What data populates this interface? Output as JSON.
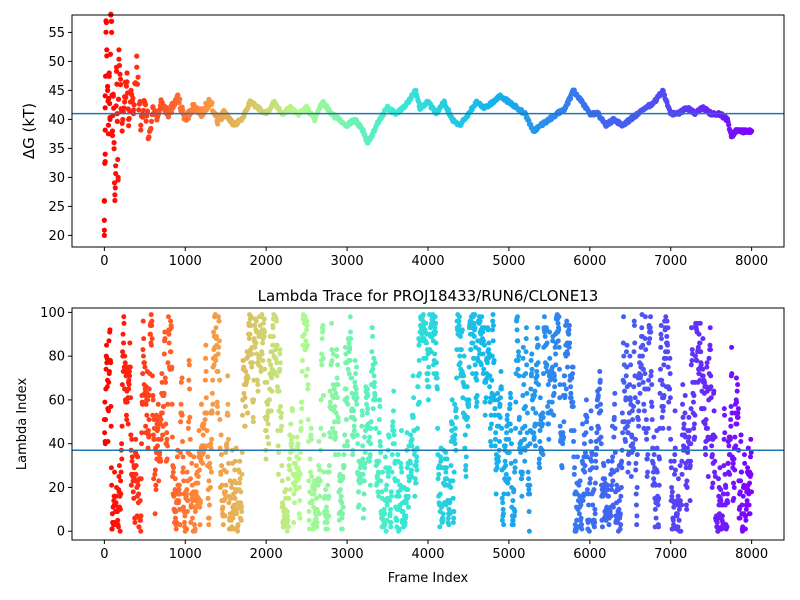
{
  "chart_data": [
    {
      "type": "scatter",
      "title": "",
      "xlabel": "",
      "ylabel": "ΔG (kT)",
      "xlim": [
        -400,
        8400
      ],
      "ylim": [
        18,
        58
      ],
      "x_ticks": [
        0,
        1000,
        2000,
        3000,
        4000,
        5000,
        6000,
        7000,
        8000
      ],
      "y_ticks": [
        20,
        25,
        30,
        35,
        40,
        45,
        50,
        55
      ],
      "hline": 41.0,
      "hline_color": "#1f77b4",
      "colormap": "rainbow (red at start → violet at end)",
      "series": [
        {
          "points": [
            [
              0,
              20
            ],
            [
              0,
              26
            ],
            [
              10,
              34
            ],
            [
              10,
              42
            ],
            [
              20,
              57
            ],
            [
              30,
              52
            ],
            [
              40,
              45
            ],
            [
              50,
              39
            ],
            [
              60,
              48
            ],
            [
              70,
              40
            ],
            [
              80,
              58
            ],
            [
              90,
              55
            ],
            [
              100,
              38
            ],
            [
              110,
              44
            ],
            [
              120,
              36
            ],
            [
              130,
              27
            ],
            [
              140,
              32
            ],
            [
              150,
              49
            ],
            [
              160,
              41
            ],
            [
              170,
              30
            ],
            [
              180,
              52
            ],
            [
              200,
              46
            ],
            [
              220,
              38
            ],
            [
              250,
              43
            ],
            [
              280,
              48
            ],
            [
              300,
              40
            ],
            [
              330,
              45
            ],
            [
              360,
              41
            ],
            [
              400,
              49
            ],
            [
              450,
              39
            ],
            [
              500,
              43
            ],
            [
              550,
              37
            ],
            [
              600,
              42
            ],
            [
              650,
              40
            ],
            [
              700,
              43
            ],
            [
              800,
              41
            ],
            [
              900,
              44
            ],
            [
              1000,
              40
            ],
            [
              1100,
              42
            ],
            [
              1200,
              41
            ],
            [
              1300,
              43
            ],
            [
              1400,
              40
            ],
            [
              1500,
              41
            ],
            [
              1600,
              39
            ],
            [
              1700,
              40
            ],
            [
              1800,
              43
            ],
            [
              1900,
              42
            ],
            [
              2000,
              41
            ],
            [
              2100,
              43
            ],
            [
              2200,
              41
            ],
            [
              2300,
              42
            ],
            [
              2400,
              41
            ],
            [
              2500,
              42
            ],
            [
              2600,
              40
            ],
            [
              2700,
              43
            ],
            [
              2800,
              41
            ],
            [
              2900,
              40
            ],
            [
              3000,
              39
            ],
            [
              3100,
              40
            ],
            [
              3200,
              38
            ],
            [
              3250,
              36
            ],
            [
              3300,
              37
            ],
            [
              3400,
              40
            ],
            [
              3500,
              42
            ],
            [
              3600,
              41
            ],
            [
              3700,
              42
            ],
            [
              3800,
              44
            ],
            [
              3850,
              45
            ],
            [
              3900,
              42
            ],
            [
              4000,
              43
            ],
            [
              4100,
              41
            ],
            [
              4200,
              43
            ],
            [
              4300,
              40
            ],
            [
              4400,
              39
            ],
            [
              4500,
              41
            ],
            [
              4600,
              43
            ],
            [
              4700,
              42
            ],
            [
              4800,
              43
            ],
            [
              4900,
              44
            ],
            [
              5000,
              43
            ],
            [
              5100,
              42
            ],
            [
              5200,
              41
            ],
            [
              5300,
              38
            ],
            [
              5400,
              39
            ],
            [
              5500,
              40
            ],
            [
              5600,
              41
            ],
            [
              5700,
              42
            ],
            [
              5800,
              45
            ],
            [
              5900,
              43
            ],
            [
              6000,
              41
            ],
            [
              6100,
              41
            ],
            [
              6200,
              39
            ],
            [
              6300,
              40
            ],
            [
              6400,
              39
            ],
            [
              6500,
              40
            ],
            [
              6600,
              41
            ],
            [
              6700,
              42
            ],
            [
              6800,
              43
            ],
            [
              6900,
              45
            ],
            [
              7000,
              41
            ],
            [
              7100,
              41
            ],
            [
              7200,
              42
            ],
            [
              7300,
              41
            ],
            [
              7400,
              42
            ],
            [
              7500,
              41
            ],
            [
              7600,
              41
            ],
            [
              7700,
              40
            ],
            [
              7750,
              37
            ],
            [
              7800,
              38
            ],
            [
              7900,
              38
            ],
            [
              8000,
              38
            ]
          ]
        }
      ]
    },
    {
      "type": "scatter",
      "title": "Lambda Trace for PROJ18433/RUN6/CLONE13",
      "xlabel": "Frame Index",
      "ylabel": "Lambda Index",
      "xlim": [
        -400,
        8400
      ],
      "ylim": [
        -4,
        102
      ],
      "x_ticks": [
        0,
        1000,
        2000,
        3000,
        4000,
        5000,
        6000,
        7000,
        8000
      ],
      "y_ticks": [
        0,
        20,
        40,
        60,
        80,
        100
      ],
      "hline": 37,
      "hline_color": "#1f77b4",
      "colormap": "rainbow (red at start → violet at end)",
      "n_frames": 8000,
      "lambda_max": 99
    }
  ]
}
